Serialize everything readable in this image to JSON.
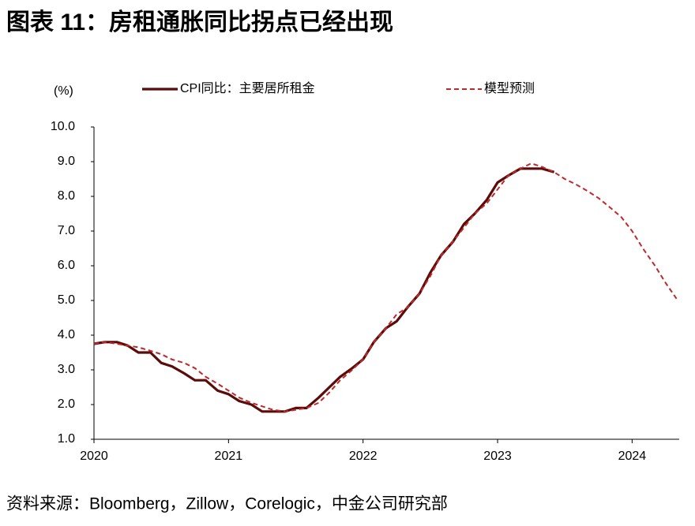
{
  "chart_data": {
    "type": "line",
    "title": "图表 11：房租通胀同比拐点已经出现",
    "ylabel": "(%)",
    "source": "资料来源：Bloomberg，Zillow，Corelogic，中金公司研究部",
    "x": [
      2020.0,
      2020.08,
      2020.17,
      2020.25,
      2020.33,
      2020.42,
      2020.5,
      2020.58,
      2020.67,
      2020.75,
      2020.83,
      2020.92,
      2021.0,
      2021.08,
      2021.17,
      2021.25,
      2021.33,
      2021.42,
      2021.5,
      2021.58,
      2021.67,
      2021.75,
      2021.83,
      2021.92,
      2022.0,
      2022.08,
      2022.17,
      2022.25,
      2022.33,
      2022.42,
      2022.5,
      2022.58,
      2022.67,
      2022.75,
      2022.83,
      2022.92,
      2023.0,
      2023.08,
      2023.17,
      2023.25,
      2023.33,
      2023.42,
      2023.5,
      2023.58,
      2023.67,
      2023.75,
      2023.83,
      2023.92,
      2024.0,
      2024.08,
      2024.17,
      2024.25,
      2024.33
    ],
    "series": [
      {
        "name": "CPI同比：主要居所租金",
        "color": "#5c0b0b",
        "style": "solid",
        "values": [
          3.75,
          3.8,
          3.8,
          3.7,
          3.5,
          3.5,
          3.2,
          3.1,
          2.9,
          2.7,
          2.7,
          2.4,
          2.3,
          2.1,
          2.0,
          1.8,
          1.8,
          1.8,
          1.9,
          1.9,
          2.2,
          2.5,
          2.8,
          3.05,
          3.3,
          3.8,
          4.2,
          4.4,
          4.8,
          5.2,
          5.8,
          6.3,
          6.7,
          7.2,
          7.5,
          7.9,
          8.4,
          8.6,
          8.8,
          8.8,
          8.8,
          8.7,
          null,
          null,
          null,
          null,
          null,
          null,
          null,
          null,
          null,
          null,
          null
        ]
      },
      {
        "name": "模型预测",
        "color": "#c0282a",
        "style": "dashed",
        "values": [
          3.75,
          3.8,
          3.75,
          3.7,
          3.65,
          3.55,
          3.45,
          3.3,
          3.2,
          3.05,
          2.8,
          2.6,
          2.4,
          2.2,
          2.05,
          1.95,
          1.85,
          1.8,
          1.85,
          1.9,
          2.05,
          2.35,
          2.7,
          3.0,
          3.3,
          3.8,
          4.2,
          4.6,
          4.8,
          5.2,
          5.7,
          6.3,
          6.7,
          7.1,
          7.5,
          7.8,
          8.2,
          8.6,
          8.8,
          8.95,
          8.85,
          8.7,
          8.5,
          8.35,
          8.15,
          7.95,
          7.7,
          7.4,
          7.0,
          6.5,
          6.0,
          5.5,
          5.05
        ]
      }
    ],
    "xlim": [
      2020,
      2024.35
    ],
    "xticks": [
      2020,
      2021,
      2022,
      2023,
      2024
    ],
    "ylim": [
      1,
      10
    ],
    "yticks": [
      {
        "value": 1,
        "label": "1.0"
      },
      {
        "value": 2,
        "label": "2.0"
      },
      {
        "value": 3,
        "label": "3.0"
      },
      {
        "value": 4,
        "label": "4.0"
      },
      {
        "value": 5,
        "label": "5.0"
      },
      {
        "value": 6,
        "label": "6.0"
      },
      {
        "value": 7,
        "label": "7.0"
      },
      {
        "value": 8,
        "label": "8.0"
      },
      {
        "value": 9,
        "label": "9.0"
      },
      {
        "value": 10,
        "label": "10.0"
      }
    ],
    "grid": false
  }
}
